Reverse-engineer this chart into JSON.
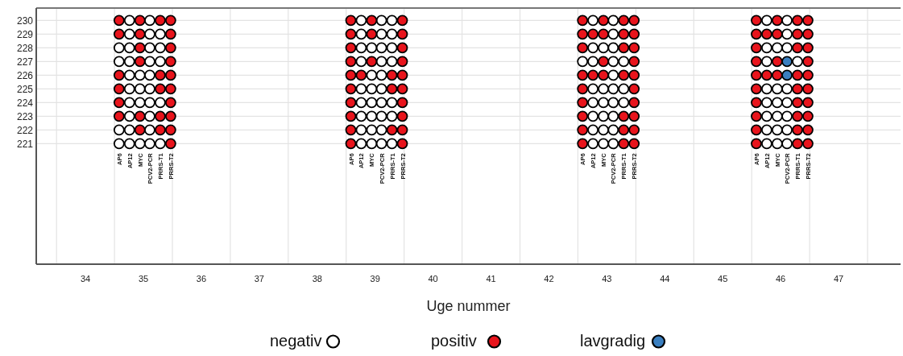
{
  "chart_data": {
    "type": "scatter",
    "xlabel": "Uge nummer",
    "xlim": [
      33.15,
      48.07
    ],
    "xticks": [
      34,
      35,
      36,
      37,
      38,
      39,
      40,
      41,
      42,
      43,
      44,
      45,
      46,
      47
    ],
    "ylim": [
      212.2,
      230.9
    ],
    "yticks": [
      221,
      222,
      223,
      224,
      225,
      226,
      227,
      228,
      229,
      230
    ],
    "grid": true,
    "legend": "bottom",
    "marker": "circle",
    "series": [
      {
        "name": "negativ",
        "color": "#ffffff",
        "x": [
          34.76,
          35.11,
          34.76,
          35.11,
          35.29,
          34.58,
          34.76,
          35.11,
          35.29,
          34.58,
          34.76,
          35.11,
          35.29,
          34.76,
          34.94,
          35.11,
          34.76,
          34.94,
          35.11,
          34.76,
          34.94,
          35.11,
          35.29,
          34.76,
          35.11,
          34.58,
          34.76,
          35.11,
          34.58,
          34.76,
          34.94,
          35.11,
          35.29,
          38.76,
          39.11,
          39.29,
          38.76,
          39.11,
          39.29,
          38.76,
          38.94,
          39.11,
          39.29,
          38.76,
          39.11,
          39.29,
          38.94,
          39.11,
          38.76,
          38.94,
          39.11,
          38.76,
          38.94,
          39.11,
          39.29,
          38.76,
          38.94,
          39.11,
          39.29,
          38.76,
          38.94,
          39.11,
          38.76,
          38.94,
          39.11,
          39.29,
          42.76,
          43.11,
          43.11,
          42.76,
          42.94,
          43.11,
          42.58,
          42.76,
          43.11,
          43.29,
          43.11,
          42.76,
          42.94,
          43.11,
          43.29,
          42.76,
          42.94,
          43.11,
          43.29,
          42.76,
          42.94,
          43.11,
          42.76,
          42.94,
          43.11,
          42.76,
          42.94,
          43.11,
          45.76,
          46.11,
          46.11,
          45.76,
          45.94,
          46.11,
          45.76,
          46.29,
          45.76,
          45.94,
          46.11,
          45.76,
          45.94,
          46.11,
          45.76,
          45.94,
          46.11,
          45.76,
          45.94,
          46.11,
          45.76,
          45.94,
          46.11
        ],
        "values": [
          230,
          230,
          229,
          229,
          229,
          228,
          228,
          228,
          228,
          227,
          227,
          227,
          227,
          226,
          226,
          226,
          225,
          225,
          225,
          224,
          224,
          224,
          224,
          223,
          223,
          222,
          222,
          222,
          221,
          221,
          221,
          221,
          221,
          230,
          230,
          230,
          229,
          229,
          229,
          228,
          228,
          228,
          228,
          227,
          227,
          227,
          226,
          226,
          225,
          225,
          225,
          224,
          224,
          224,
          224,
          223,
          223,
          223,
          223,
          222,
          222,
          222,
          221,
          221,
          221,
          221,
          230,
          230,
          229,
          228,
          228,
          228,
          227,
          227,
          227,
          227,
          226,
          225,
          225,
          225,
          225,
          224,
          224,
          224,
          224,
          223,
          223,
          223,
          222,
          222,
          222,
          221,
          221,
          221,
          230,
          230,
          229,
          228,
          228,
          228,
          227,
          227,
          225,
          225,
          225,
          224,
          224,
          224,
          223,
          223,
          223,
          222,
          222,
          222,
          221,
          221,
          221
        ]
      },
      {
        "name": "positiv",
        "color": "#e8141c",
        "x": [
          34.58,
          34.94,
          35.29,
          35.47,
          34.58,
          34.94,
          35.47,
          34.94,
          35.47,
          34.94,
          35.47,
          34.58,
          35.29,
          35.47,
          34.58,
          35.29,
          35.47,
          34.58,
          35.47,
          34.58,
          34.94,
          35.29,
          35.47,
          34.94,
          35.29,
          35.47,
          35.47,
          38.58,
          38.94,
          39.47,
          38.58,
          38.94,
          39.47,
          38.58,
          39.47,
          38.58,
          38.94,
          39.47,
          38.58,
          38.76,
          39.29,
          39.47,
          38.58,
          39.29,
          39.47,
          38.58,
          39.47,
          38.58,
          39.47,
          38.58,
          39.29,
          39.47,
          38.58,
          39.47,
          42.58,
          42.94,
          43.29,
          43.47,
          42.58,
          42.76,
          42.94,
          43.29,
          43.47,
          42.58,
          43.29,
          43.47,
          42.94,
          43.47,
          42.58,
          42.76,
          42.94,
          43.29,
          43.47,
          42.58,
          43.47,
          42.58,
          43.47,
          42.58,
          43.29,
          43.47,
          42.58,
          43.29,
          43.47,
          42.58,
          43.29,
          43.47,
          45.58,
          45.94,
          46.29,
          46.47,
          45.58,
          45.76,
          45.94,
          46.29,
          46.47,
          45.58,
          46.29,
          46.47,
          45.58,
          45.94,
          46.47,
          45.58,
          45.76,
          45.94,
          46.29,
          46.47,
          45.58,
          46.29,
          46.47,
          45.58,
          46.29,
          46.47,
          45.58,
          46.29,
          46.47,
          45.58,
          46.29,
          46.47,
          45.58,
          46.29,
          46.47
        ],
        "values": [
          230,
          230,
          230,
          230,
          229,
          229,
          229,
          228,
          228,
          227,
          227,
          226,
          226,
          226,
          225,
          225,
          225,
          224,
          224,
          223,
          223,
          223,
          223,
          222,
          222,
          222,
          221,
          230,
          230,
          230,
          229,
          229,
          229,
          228,
          228,
          227,
          227,
          227,
          226,
          226,
          226,
          226,
          225,
          225,
          225,
          224,
          224,
          223,
          223,
          222,
          222,
          222,
          221,
          221,
          230,
          230,
          230,
          230,
          229,
          229,
          229,
          229,
          229,
          228,
          228,
          228,
          227,
          227,
          226,
          226,
          226,
          226,
          226,
          225,
          225,
          224,
          224,
          223,
          223,
          223,
          222,
          222,
          222,
          221,
          221,
          221,
          230,
          230,
          230,
          230,
          229,
          229,
          229,
          229,
          229,
          228,
          228,
          228,
          227,
          227,
          227,
          226,
          226,
          226,
          226,
          226,
          225,
          225,
          225,
          224,
          224,
          224,
          223,
          223,
          223,
          222,
          222,
          222,
          221,
          221,
          221
        ]
      },
      {
        "name": "lavgradig",
        "color": "#3a7fc0",
        "x": [
          46.11,
          46.11
        ],
        "values": [
          227,
          226
        ]
      }
    ],
    "annotations": [
      "AP6",
      "AP12",
      "MYC",
      "PCV2-PCR",
      "PRRS-T1",
      "PRRS-T2",
      "AP6",
      "AP12",
      "MYC",
      "PCV2-PCR",
      "PRRS-T1",
      "PRRS-T2",
      "AP6",
      "AP12",
      "MYC",
      "PCV2-PCR",
      "PRRS-T1",
      "PRRS-T2",
      "AP6",
      "AP12",
      "MYC",
      "PCV2-PCR",
      "PRRS-T1",
      "PRRS-T2"
    ]
  }
}
